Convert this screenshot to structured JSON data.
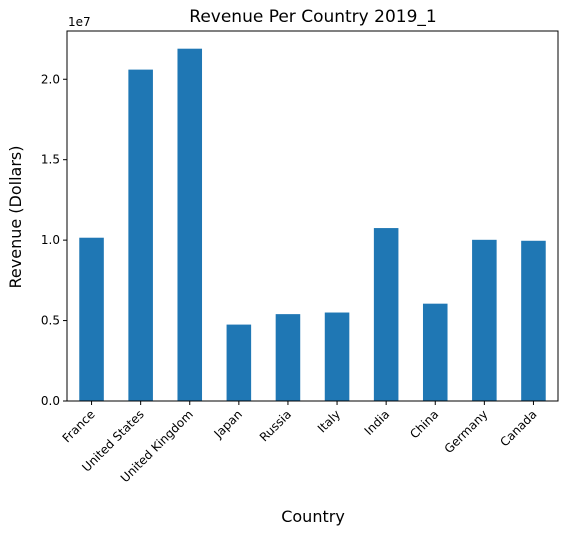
{
  "chart_data": {
    "type": "bar",
    "title": "Revenue Per Country 2019_1",
    "xlabel": "Country",
    "ylabel": "Revenue (Dollars)",
    "categories": [
      "France",
      "United States",
      "United Kingdom",
      "Japan",
      "Russia",
      "Italy",
      "India",
      "China",
      "Germany",
      "Canada"
    ],
    "values": [
      10150000,
      20600000,
      21900000,
      4750000,
      5400000,
      5500000,
      10750000,
      6050000,
      10020000,
      9960000
    ],
    "ylim": [
      0,
      23000000
    ],
    "yticks": [
      0,
      5000000,
      10000000,
      15000000,
      20000000
    ],
    "ytick_labels": [
      "0.0",
      "0.5",
      "1.0",
      "1.5",
      "2.0"
    ],
    "y_offset_label": "1e7",
    "grid": false,
    "bar_color": "#1f77b4"
  }
}
